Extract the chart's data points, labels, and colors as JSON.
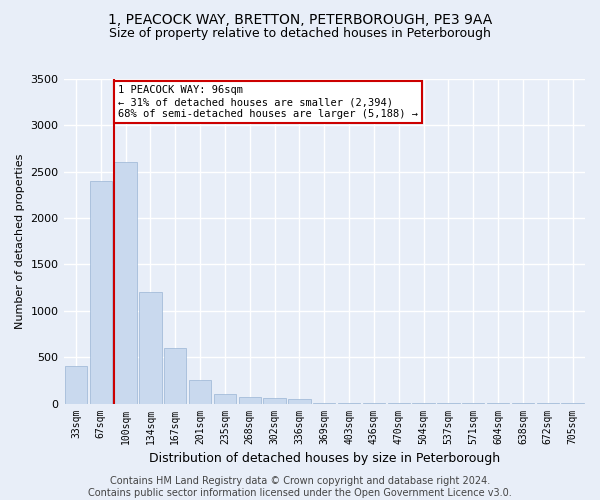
{
  "title": "1, PEACOCK WAY, BRETTON, PETERBOROUGH, PE3 9AA",
  "subtitle": "Size of property relative to detached houses in Peterborough",
  "xlabel": "Distribution of detached houses by size in Peterborough",
  "ylabel": "Number of detached properties",
  "categories": [
    "33sqm",
    "67sqm",
    "100sqm",
    "134sqm",
    "167sqm",
    "201sqm",
    "235sqm",
    "268sqm",
    "302sqm",
    "336sqm",
    "369sqm",
    "403sqm",
    "436sqm",
    "470sqm",
    "504sqm",
    "537sqm",
    "571sqm",
    "604sqm",
    "638sqm",
    "672sqm",
    "705sqm"
  ],
  "values": [
    400,
    2400,
    2600,
    1200,
    600,
    250,
    100,
    70,
    60,
    50,
    10,
    10,
    5,
    3,
    2,
    2,
    1,
    1,
    1,
    1,
    1
  ],
  "bar_color": "#c9d9ee",
  "bar_edgecolor": "#9ab5d4",
  "vline_color": "#cc0000",
  "vline_bar_index": 2,
  "annotation_text": "1 PEACOCK WAY: 96sqm\n← 31% of detached houses are smaller (2,394)\n68% of semi-detached houses are larger (5,188) →",
  "annotation_box_color": "#ffffff",
  "annotation_box_edgecolor": "#cc0000",
  "ylim": [
    0,
    3500
  ],
  "yticks": [
    0,
    500,
    1000,
    1500,
    2000,
    2500,
    3000,
    3500
  ],
  "footer": "Contains HM Land Registry data © Crown copyright and database right 2024.\nContains public sector information licensed under the Open Government Licence v3.0.",
  "bg_color": "#e8eef8",
  "plot_bg_color": "#e8eef8",
  "grid_color": "#ffffff",
  "title_fontsize": 10,
  "subtitle_fontsize": 9,
  "ylabel_fontsize": 8,
  "xlabel_fontsize": 9,
  "tick_fontsize": 7,
  "footer_fontsize": 7,
  "annot_fontsize": 7.5
}
